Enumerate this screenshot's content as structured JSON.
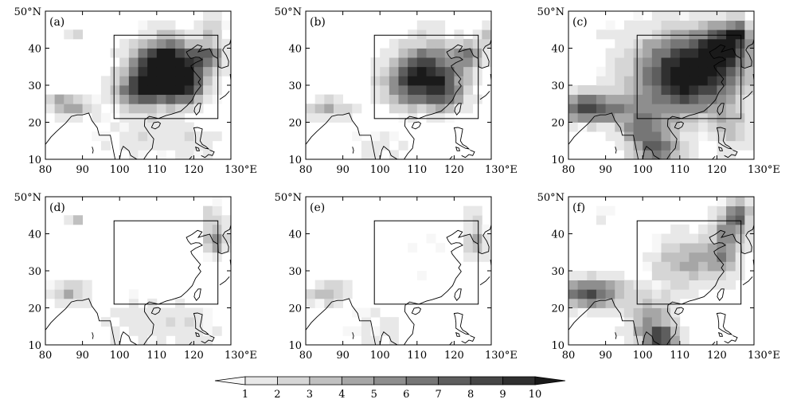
{
  "panels": [
    {
      "label": "(a)",
      "blobs": [
        [
          113,
          36,
          8,
          7,
          0.95
        ],
        [
          110,
          32,
          9,
          7,
          0.7
        ],
        [
          105,
          28,
          6,
          4,
          0.55
        ],
        [
          118,
          30,
          5,
          5,
          0.7
        ],
        [
          124,
          38,
          4,
          4,
          0.6
        ],
        [
          88,
          24,
          6,
          3,
          0.4
        ],
        [
          84,
          26,
          3,
          2,
          0.35
        ],
        [
          105,
          16,
          10,
          6,
          0.2
        ],
        [
          120,
          15,
          6,
          5,
          0.2
        ],
        [
          88,
          44,
          2,
          1,
          0.4
        ],
        [
          125,
          46,
          3,
          3,
          0.3
        ]
      ]
    },
    {
      "label": "(b)",
      "blobs": [
        [
          113,
          34,
          9,
          8,
          0.8
        ],
        [
          108,
          30,
          8,
          6,
          0.5
        ],
        [
          118,
          28,
          5,
          5,
          0.45
        ],
        [
          124,
          38,
          4,
          4,
          0.5
        ],
        [
          86,
          24,
          6,
          3,
          0.4
        ],
        [
          100,
          14,
          8,
          5,
          0.15
        ],
        [
          128,
          44,
          2,
          3,
          0.4
        ]
      ]
    },
    {
      "label": "(c)",
      "blobs": [
        [
          112,
          33,
          14,
          11,
          1.2
        ],
        [
          122,
          40,
          6,
          6,
          0.8
        ],
        [
          86,
          24,
          9,
          4,
          0.9
        ],
        [
          100,
          18,
          6,
          6,
          0.6
        ],
        [
          105,
          12,
          6,
          4,
          0.6
        ],
        [
          124,
          18,
          4,
          6,
          0.3
        ],
        [
          126,
          44,
          3,
          3,
          0.6
        ],
        [
          90,
          44,
          3,
          2,
          0.2
        ]
      ]
    },
    {
      "label": "(d)",
      "blobs": [
        [
          86,
          24,
          6,
          3,
          0.4
        ],
        [
          106,
          16,
          10,
          6,
          0.2
        ],
        [
          120,
          15,
          6,
          5,
          0.2
        ],
        [
          126,
          38,
          3,
          4,
          0.6
        ],
        [
          125,
          45,
          3,
          3,
          0.3
        ],
        [
          88,
          44,
          2,
          1,
          0.35
        ]
      ]
    },
    {
      "label": "(e)",
      "blobs": [
        [
          86,
          24,
          6,
          3,
          0.4
        ],
        [
          100,
          14,
          9,
          5,
          0.15
        ],
        [
          126,
          38,
          3,
          4,
          0.5
        ],
        [
          125,
          45,
          3,
          3,
          0.25
        ],
        [
          112,
          34,
          6,
          6,
          0.1
        ]
      ]
    },
    {
      "label": "(f)",
      "blobs": [
        [
          112,
          32,
          9,
          7,
          0.45
        ],
        [
          86,
          24,
          9,
          4,
          0.85
        ],
        [
          102,
          17,
          6,
          6,
          0.5
        ],
        [
          105,
          12,
          5,
          3,
          0.7
        ],
        [
          124,
          42,
          5,
          5,
          0.6
        ],
        [
          122,
          34,
          4,
          5,
          0.45
        ],
        [
          126,
          46,
          3,
          3,
          0.5
        ],
        [
          90,
          45,
          3,
          2,
          0.2
        ]
      ]
    }
  ],
  "axes": {
    "x_ticks": [
      {
        "v": 80,
        "t": "80"
      },
      {
        "v": 90,
        "t": "90"
      },
      {
        "v": 100,
        "t": "100"
      },
      {
        "v": 110,
        "t": "110"
      },
      {
        "v": 120,
        "t": "120"
      },
      {
        "v": 130,
        "t": "130°E"
      }
    ],
    "y_ticks": [
      {
        "v": 10,
        "t": "10"
      },
      {
        "v": 20,
        "t": "20"
      },
      {
        "v": 30,
        "t": "30"
      },
      {
        "v": 40,
        "t": "40"
      },
      {
        "v": 50,
        "t": "50°N"
      }
    ],
    "lon_range": [
      80,
      130
    ],
    "lat_range": [
      10,
      50
    ],
    "region_box": {
      "lon": [
        98.5,
        126.5
      ],
      "lat": [
        21,
        43.5
      ]
    }
  },
  "colorbar": {
    "labels": [
      "1",
      "2",
      "3",
      "4",
      "5",
      "6",
      "7",
      "8",
      "9",
      "10"
    ],
    "colors": [
      "#f7f7f7",
      "#e8e8e8",
      "#d6d6d6",
      "#c0c0c0",
      "#a6a6a6",
      "#8e8e8e",
      "#767676",
      "#5e5e5e",
      "#464646",
      "#303030",
      "#1a1a1a"
    ]
  }
}
